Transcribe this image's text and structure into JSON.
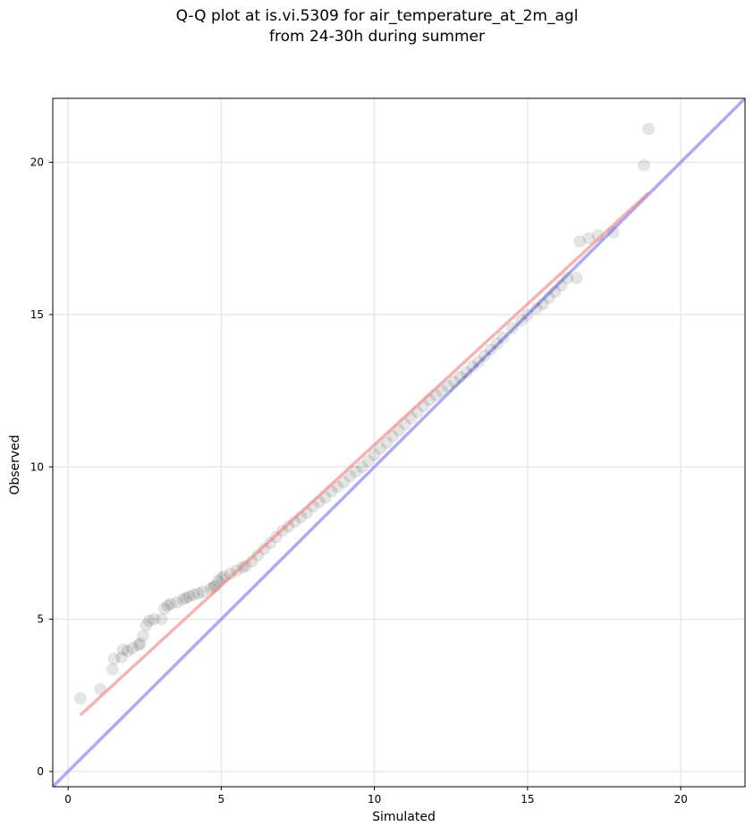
{
  "chart_data": {
    "type": "scatter",
    "title": "Q-Q plot at is.vi.5309 for air_temperature_at_2m_agl",
    "subtitle": "from 24-30h during summer",
    "xlabel": "Simulated",
    "ylabel": "Observed",
    "xlim": [
      -0.5,
      22.1
    ],
    "ylim": [
      -0.5,
      22.1
    ],
    "xticks": [
      0,
      5,
      10,
      15,
      20
    ],
    "yticks": [
      0,
      5,
      10,
      15,
      20
    ],
    "xtick_labels": [
      "0",
      "5",
      "10",
      "15",
      "20"
    ],
    "ytick_labels": [
      "0",
      "5",
      "10",
      "15",
      "20"
    ],
    "grid": true,
    "points_x": [
      0.4,
      1.05,
      1.45,
      1.5,
      1.75,
      1.8,
      1.95,
      2.1,
      2.3,
      2.35,
      2.45,
      2.55,
      2.65,
      2.8,
      3.05,
      3.15,
      3.25,
      3.35,
      3.55,
      3.75,
      3.85,
      3.95,
      4.1,
      4.25,
      4.4,
      4.65,
      4.75,
      4.8,
      4.9,
      5.0,
      5.1,
      5.3,
      5.5,
      5.7,
      5.8,
      6.0,
      6.2,
      6.4,
      6.6,
      6.8,
      7.0,
      7.2,
      7.4,
      7.6,
      7.8,
      8.0,
      8.2,
      8.4,
      8.6,
      8.8,
      9.0,
      9.2,
      9.4,
      9.6,
      9.8,
      10.0,
      10.2,
      10.4,
      10.6,
      10.8,
      11.0,
      11.2,
      11.4,
      11.6,
      11.8,
      12.0,
      12.2,
      12.4,
      12.6,
      12.8,
      13.0,
      13.2,
      13.4,
      13.6,
      13.8,
      14.0,
      14.2,
      14.5,
      14.8,
      15.0,
      15.3,
      15.5,
      15.7,
      15.9,
      16.1,
      16.3,
      16.6,
      16.7,
      17.0,
      17.3,
      17.8,
      18.8,
      18.95
    ],
    "points_y": [
      2.4,
      2.7,
      3.35,
      3.7,
      3.75,
      4.0,
      3.95,
      4.05,
      4.15,
      4.2,
      4.45,
      4.8,
      4.95,
      5.0,
      5.0,
      5.35,
      5.45,
      5.5,
      5.55,
      5.65,
      5.7,
      5.75,
      5.8,
      5.85,
      5.9,
      6.0,
      6.05,
      6.1,
      6.25,
      6.35,
      6.4,
      6.5,
      6.6,
      6.7,
      6.75,
      6.9,
      7.1,
      7.3,
      7.5,
      7.7,
      7.9,
      8.05,
      8.2,
      8.35,
      8.5,
      8.7,
      8.85,
      9.0,
      9.2,
      9.35,
      9.5,
      9.7,
      9.85,
      10.0,
      10.2,
      10.4,
      10.6,
      10.8,
      11.0,
      11.2,
      11.4,
      11.6,
      11.8,
      12.0,
      12.2,
      12.35,
      12.5,
      12.65,
      12.8,
      12.95,
      13.1,
      13.3,
      13.45,
      13.65,
      13.85,
      14.05,
      14.25,
      14.55,
      14.8,
      15.0,
      15.2,
      15.35,
      15.55,
      15.75,
      15.95,
      16.2,
      16.2,
      17.4,
      17.5,
      17.6,
      17.7,
      19.9,
      21.1
    ],
    "fit_line": {
      "x": [
        0.4,
        18.95
      ],
      "y": [
        1.85,
        19.0
      ]
    },
    "identity_line": {
      "x": [
        -0.5,
        22.1
      ],
      "y": [
        -0.5,
        22.1
      ]
    },
    "colors": {
      "points": "#000000",
      "fit_line": "#f08080",
      "fit_line_overlay": "#8b0000",
      "identity_line": "#8080f0",
      "grid": "#e8e8e8"
    }
  }
}
